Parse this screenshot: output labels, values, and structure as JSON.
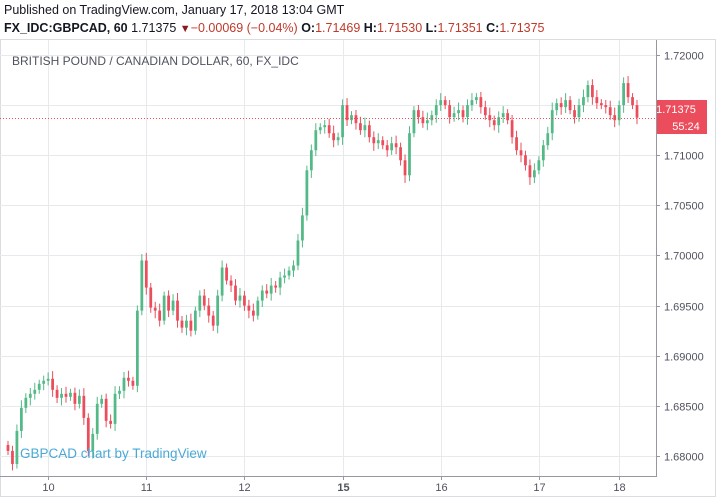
{
  "header": {
    "published": "Published on TradingView.com, January 17, 2018 13:04 GMT",
    "symbol": "FX_IDC:GBPCAD, 60",
    "last": "1.71375",
    "change": "−0.00069 (−0.04%)",
    "open_label": "O:",
    "open": "1.71469",
    "high_label": "H:",
    "high": "1.71530",
    "low_label": "L:",
    "low": "1.71351",
    "close_label": "C:",
    "close": "1.71375"
  },
  "watermark": "GBPCAD chart by TradingView",
  "price_tag": {
    "price": "1.71375",
    "countdown": "55:24"
  },
  "colors": {
    "up": "#53b987",
    "down": "#eb4d5c",
    "grid": "#e6e9ee",
    "axis_text": "#50535e",
    "price_line": "#eb4d5c"
  },
  "chart_data": {
    "type": "candlestick",
    "title": "BRITISH POUND / CANADIAN DOLLAR, 60, FX_IDC",
    "ylim": [
      1.678,
      1.7215
    ],
    "y_ticks": [
      "1.72000",
      "1.71500",
      "1.71000",
      "1.70500",
      "1.70000",
      "1.69500",
      "1.69000",
      "1.68500",
      "1.68000"
    ],
    "x_ticks": [
      {
        "label": "10",
        "index": 9
      },
      {
        "label": "11",
        "index": 31
      },
      {
        "label": "12",
        "index": 53
      },
      {
        "label": "15",
        "index": 75,
        "bold": true
      },
      {
        "label": "16",
        "index": 97
      },
      {
        "label": "17",
        "index": 119
      },
      {
        "label": "18",
        "index": 137
      }
    ],
    "last_price": 1.71375,
    "closes": [
      1.6805,
      1.6792,
      1.6825,
      1.6848,
      1.6858,
      1.6862,
      1.6866,
      1.6872,
      1.6875,
      1.6877,
      1.6866,
      1.6858,
      1.6862,
      1.6859,
      1.6863,
      1.6852,
      1.686,
      1.6838,
      1.6805,
      1.6822,
      1.6852,
      1.6857,
      1.6835,
      1.6832,
      1.6862,
      1.6865,
      1.6878,
      1.6875,
      1.687,
      1.6945,
      1.6995,
      1.6968,
      1.6948,
      1.6945,
      1.6935,
      1.696,
      1.6945,
      1.6955,
      1.6935,
      1.6928,
      1.6935,
      1.6925,
      1.6945,
      1.696,
      1.695,
      1.694,
      1.693,
      1.696,
      1.6988,
      1.6975,
      1.697,
      1.6955,
      1.696,
      1.695,
      1.6945,
      1.694,
      1.6955,
      1.6965,
      1.6962,
      1.697,
      1.6968,
      1.6978,
      1.698,
      1.6985,
      1.699,
      1.7015,
      1.704,
      1.7085,
      1.7105,
      1.7125,
      1.7128,
      1.713,
      1.7122,
      1.7115,
      1.7118,
      1.715,
      1.7135,
      1.714,
      1.7132,
      1.7125,
      1.713,
      1.7118,
      1.7112,
      1.7115,
      1.711,
      1.7105,
      1.7112,
      1.7108,
      1.7095,
      1.708,
      1.7122,
      1.7145,
      1.7138,
      1.7132,
      1.7135,
      1.714,
      1.715,
      1.7155,
      1.715,
      1.7138,
      1.7142,
      1.7145,
      1.7138,
      1.715,
      1.7155,
      1.7158,
      1.7148,
      1.714,
      1.7135,
      1.713,
      1.7138,
      1.7142,
      1.7135,
      1.7118,
      1.7105,
      1.71,
      1.709,
      1.7078,
      1.7085,
      1.7095,
      1.711,
      1.7122,
      1.7145,
      1.7152,
      1.7148,
      1.7155,
      1.7145,
      1.7138,
      1.715,
      1.7158,
      1.717,
      1.7158,
      1.7152,
      1.715,
      1.7148,
      1.714,
      1.7135,
      1.715,
      1.7172,
      1.7158,
      1.715,
      1.71375
    ]
  }
}
